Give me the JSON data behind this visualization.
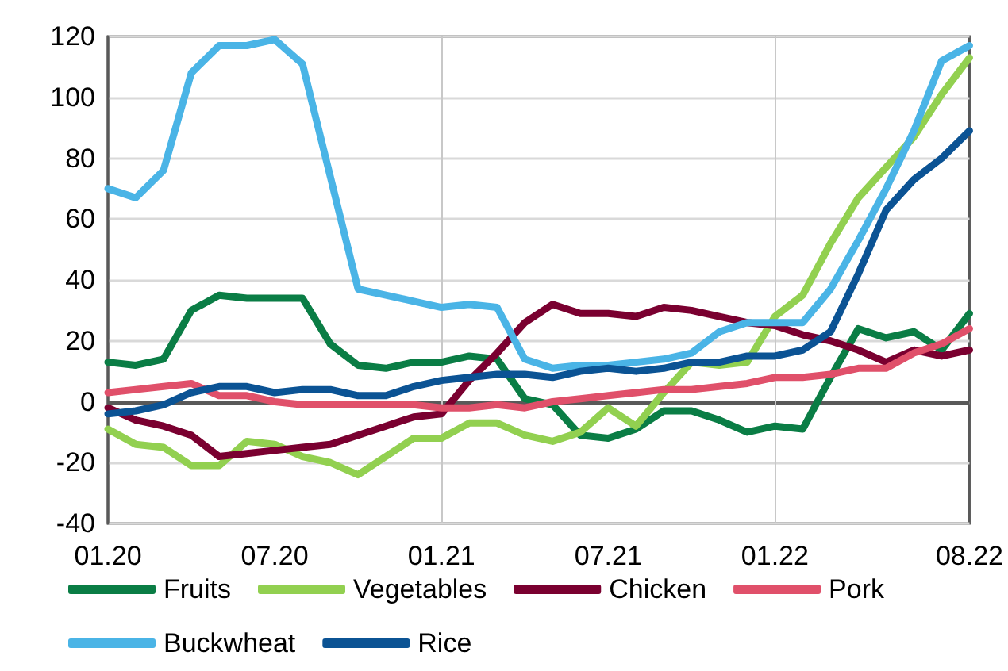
{
  "chart_data": {
    "type": "line",
    "categories": [
      "01.20",
      null,
      null,
      null,
      null,
      null,
      "07.20",
      null,
      null,
      null,
      null,
      null,
      "01.21",
      null,
      null,
      null,
      null,
      null,
      "07.21",
      null,
      null,
      null,
      null,
      null,
      "01.22",
      null,
      null,
      null,
      null,
      null,
      null,
      "08.22"
    ],
    "series": [
      {
        "name": "Fruits",
        "color": "#0a7d45",
        "values": [
          13,
          12,
          14,
          30,
          35,
          34,
          34,
          34,
          19,
          12,
          11,
          13,
          13,
          15,
          14,
          1,
          -1,
          -11,
          -12,
          -9,
          -3,
          -3,
          -6,
          -10,
          -8,
          -9,
          8,
          24,
          21,
          23,
          17,
          29
        ]
      },
      {
        "name": "Vegetables",
        "color": "#92d050",
        "values": [
          -9,
          -14,
          -15,
          -21,
          -21,
          -13,
          -14,
          -18,
          -20,
          -24,
          -18,
          -12,
          -12,
          -7,
          -7,
          -11,
          -13,
          -10,
          -2,
          -8,
          3,
          13,
          12,
          13,
          28,
          35,
          52,
          67,
          77,
          87,
          101,
          113
        ]
      },
      {
        "name": "Chicken",
        "color": "#7a0030",
        "values": [
          -2,
          -6,
          -8,
          -11,
          -18,
          -17,
          -16,
          -15,
          -14,
          -11,
          -8,
          -5,
          -4,
          7,
          16,
          26,
          32,
          29,
          29,
          28,
          31,
          30,
          28,
          26,
          25,
          22,
          20,
          17,
          13,
          17,
          15,
          17
        ]
      },
      {
        "name": "Pork",
        "color": "#e0506a",
        "values": [
          3,
          4,
          5,
          6,
          2,
          2,
          0,
          -1,
          -1,
          -1,
          -1,
          -1,
          -2,
          -2,
          -1,
          -2,
          0,
          1,
          2,
          3,
          4,
          4,
          5,
          6,
          8,
          8,
          9,
          11,
          11,
          16,
          19,
          24
        ]
      },
      {
        "name": "Buckwheat",
        "color": "#4ab4e6",
        "values": [
          70,
          67,
          76,
          108,
          117,
          117,
          119,
          111,
          74,
          37,
          35,
          33,
          31,
          32,
          31,
          14,
          11,
          12,
          12,
          13,
          14,
          16,
          23,
          26,
          26,
          26,
          37,
          53,
          70,
          89,
          112,
          117
        ]
      },
      {
        "name": "Rice",
        "color": "#0b5394",
        "values": [
          -4,
          -3,
          -1,
          3,
          5,
          5,
          3,
          4,
          4,
          2,
          2,
          5,
          7,
          8,
          9,
          9,
          8,
          10,
          11,
          10,
          11,
          13,
          13,
          15,
          15,
          17,
          23,
          42,
          63,
          73,
          80,
          89
        ]
      }
    ],
    "ylim": [
      -40,
      120
    ],
    "yticks": [
      -40,
      -20,
      0,
      20,
      40,
      60,
      80,
      100,
      120
    ],
    "grid": "y",
    "legend": "bottom",
    "marker": "none",
    "line_style": "solid",
    "ref_lines": [
      {
        "axis": "y",
        "value": 0,
        "color": "#595959"
      },
      {
        "axis": "x",
        "value": "01.21",
        "color": "#c8c8c8"
      },
      {
        "axis": "x",
        "value": "01.22",
        "color": "#c8c8c8"
      }
    ]
  }
}
